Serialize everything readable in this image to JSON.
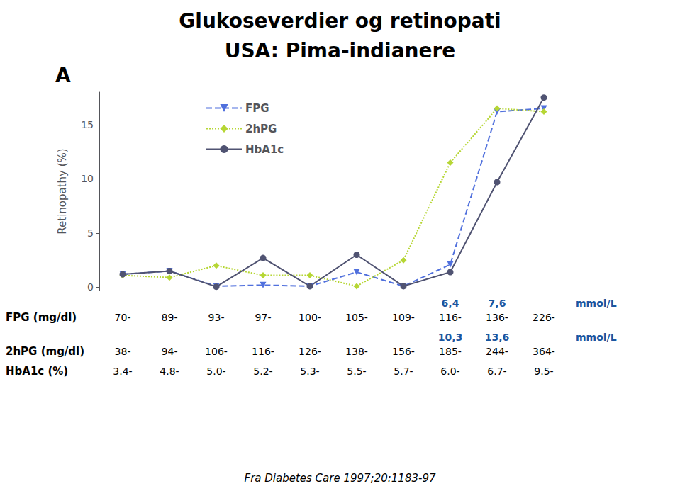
{
  "chart_data": {
    "type": "line",
    "title": "Glukoseverdier og retinopati",
    "subtitle": "USA: Pima-indianere",
    "panel_label": "A",
    "ylabel": "Retinopathy (%)",
    "ylim": [
      -0.3,
      18
    ],
    "yticks": [
      0,
      5,
      10,
      15
    ],
    "categories": [
      null,
      null,
      null,
      null,
      null,
      null,
      null,
      null,
      null,
      null
    ],
    "tick_labels": "y",
    "grid": false,
    "legend": "upper left",
    "series": [
      {
        "name": "FPG",
        "marker": "triangle_down",
        "line_style": "dashed",
        "values": [
          1.2,
          1.5,
          0.1,
          0.2,
          0.1,
          1.4,
          0.1,
          2.1,
          16.2,
          16.5
        ]
      },
      {
        "name": "2hPG",
        "marker": "diamond",
        "line_style": "dotted",
        "values": [
          1.1,
          0.9,
          2.0,
          1.1,
          1.1,
          0.1,
          2.5,
          11.5,
          16.5,
          16.2
        ]
      },
      {
        "name": "HbA1c",
        "marker": "circle",
        "line_style": "solid",
        "values": [
          1.2,
          1.5,
          0.05,
          2.7,
          0.1,
          3.0,
          0.1,
          1.4,
          9.7,
          17.5
        ]
      }
    ],
    "table": [
      {
        "cells": [
          null,
          null,
          null,
          null,
          null,
          null,
          null,
          "6,4",
          "7,6",
          null
        ],
        "unit": "mmol/L",
        "color": "#1a56a0"
      },
      {
        "label": "FPG (mg/dl)",
        "cells": [
          "70-",
          "89-",
          "93-",
          "97-",
          "100-",
          "105-",
          "109-",
          "116-",
          "136-",
          "226-"
        ]
      },
      {
        "cells": [
          null,
          null,
          null,
          null,
          null,
          null,
          null,
          "10,3",
          "13,6",
          null
        ],
        "unit": "mmol/L",
        "color": "#1a56a0"
      },
      {
        "label": "2hPG (mg/dl)",
        "cells": [
          "38-",
          "94-",
          "106-",
          "116-",
          "126-",
          "138-",
          "156-",
          "185-",
          "244-",
          "364-"
        ]
      },
      {
        "label": "HbA1c (%)",
        "cells": [
          "3.4-",
          "4.8-",
          "5.0-",
          "5.2-",
          "5.3-",
          "5.5-",
          "5.7-",
          "6.0-",
          "6.7-",
          "9.5-"
        ]
      }
    ],
    "footnote": "Fra Diabetes Care 1997;20:1183-97"
  }
}
